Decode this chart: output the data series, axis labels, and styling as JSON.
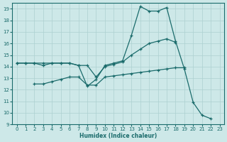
{
  "xlabel": "Humidex (Indice chaleur)",
  "ylabel": "",
  "bg_color": "#cde8e8",
  "grid_color": "#add0d0",
  "line_color": "#1a6b6b",
  "xlim": [
    -0.5,
    23.5
  ],
  "ylim": [
    9,
    19.5
  ],
  "yticks": [
    9,
    10,
    11,
    12,
    13,
    14,
    15,
    16,
    17,
    18,
    19
  ],
  "xticks": [
    0,
    1,
    2,
    3,
    4,
    5,
    6,
    7,
    8,
    9,
    10,
    11,
    12,
    13,
    14,
    15,
    16,
    17,
    18,
    19,
    20,
    21,
    22,
    23
  ],
  "series": [
    {
      "x": [
        0,
        1,
        2,
        3,
        4,
        5,
        6,
        7,
        8,
        9,
        10,
        11,
        12,
        13,
        14,
        15,
        16,
        17,
        18,
        19,
        20,
        21,
        22
      ],
      "y": [
        14.3,
        14.3,
        14.3,
        14.3,
        14.3,
        14.3,
        14.3,
        14.1,
        12.3,
        12.9,
        14.1,
        14.3,
        14.5,
        16.7,
        19.2,
        18.8,
        18.8,
        19.1,
        16.2,
        13.8,
        10.9,
        9.8,
        9.5
      ]
    },
    {
      "x": [
        2,
        3,
        4,
        5,
        6,
        7,
        8,
        9,
        10,
        11,
        12,
        13,
        14,
        15,
        16,
        17,
        18,
        19
      ],
      "y": [
        12.5,
        12.5,
        12.7,
        12.9,
        13.1,
        13.1,
        12.4,
        12.4,
        13.1,
        13.2,
        13.3,
        13.4,
        13.5,
        13.6,
        13.7,
        13.8,
        13.9,
        13.9
      ]
    },
    {
      "x": [
        0,
        1,
        2,
        3,
        4,
        5,
        6,
        7,
        8,
        9,
        10,
        11,
        12,
        13,
        14,
        15,
        16,
        17,
        18
      ],
      "y": [
        14.3,
        14.3,
        14.3,
        14.1,
        14.3,
        14.3,
        14.3,
        14.1,
        14.1,
        13.1,
        14.0,
        14.2,
        14.4,
        15.0,
        15.5,
        16.0,
        16.2,
        16.4,
        16.1
      ]
    }
  ]
}
